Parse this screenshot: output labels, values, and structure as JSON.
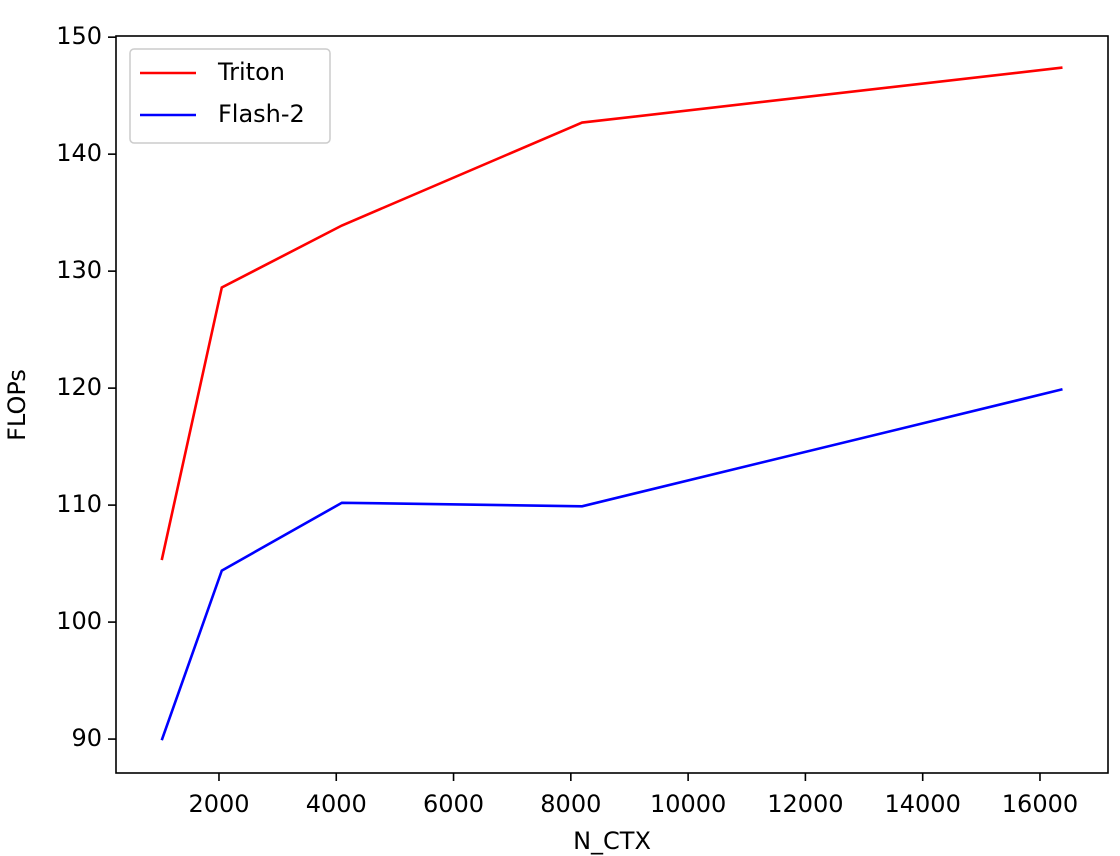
{
  "chart_data": {
    "type": "line",
    "x_label": "N_CTX",
    "y_label": "FLOPs",
    "x": [
      1024,
      2048,
      4096,
      8192,
      16384
    ],
    "series": [
      {
        "name": "Triton",
        "color": "#ff0000",
        "values": [
          105.3,
          128.6,
          133.9,
          142.7,
          147.4
        ]
      },
      {
        "name": "Flash-2",
        "color": "#0000ff",
        "values": [
          89.9,
          104.4,
          110.2,
          109.9,
          119.9
        ]
      }
    ],
    "xlim": [
      244,
      17160
    ],
    "xticks": [
      2000,
      4000,
      6000,
      8000,
      10000,
      12000,
      14000,
      16000
    ],
    "ylim": [
      87.1,
      150.1
    ],
    "yticks": [
      90,
      100,
      110,
      120,
      130,
      140,
      150
    ],
    "legend": "upper left"
  }
}
